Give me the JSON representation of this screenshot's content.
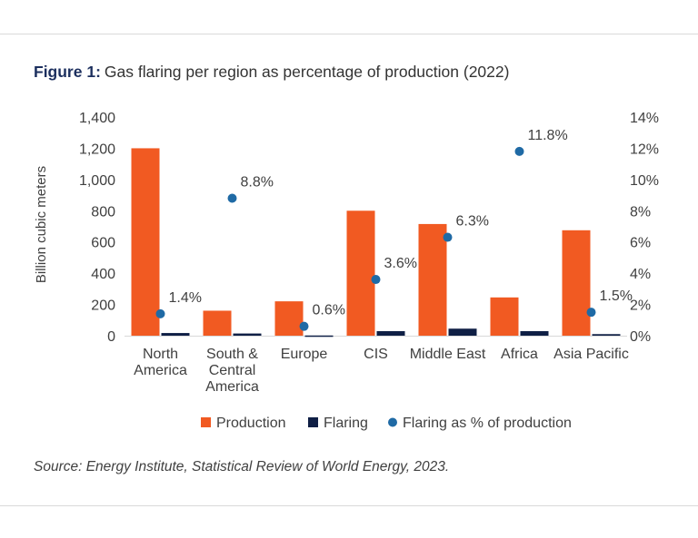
{
  "figure": {
    "label": "Figure 1:",
    "title": "Gas flaring per region as percentage of production (2022)",
    "source": "Source: Energy Institute, Statistical Review of World Energy, 2023."
  },
  "chart_data": {
    "type": "bar",
    "title": "Gas flaring per region as percentage of production (2022)",
    "ylabel": "Billion cubic meters",
    "y2label": "",
    "xlabel": "",
    "categories": [
      [
        "North",
        "America"
      ],
      [
        "South &",
        "Central",
        "America"
      ],
      [
        "Europe"
      ],
      [
        "CIS"
      ],
      [
        "Middle East"
      ],
      [
        "Africa"
      ],
      [
        "Asia Pacific"
      ]
    ],
    "ylim": [
      0,
      1400
    ],
    "yticks": [
      0,
      200,
      400,
      600,
      800,
      1000,
      1200,
      1400
    ],
    "ytick_labels": [
      "0",
      "200",
      "400",
      "600",
      "800",
      "1,000",
      "1,200",
      "1,400"
    ],
    "y2lim": [
      0,
      14
    ],
    "y2ticks": [
      0,
      2,
      4,
      6,
      8,
      10,
      12,
      14
    ],
    "y2tick_labels": [
      "0%",
      "2%",
      "4%",
      "6%",
      "8%",
      "10%",
      "12%",
      "14%"
    ],
    "series": [
      {
        "name": "Production",
        "type": "bar",
        "axis": "left",
        "color": "#f15a22",
        "values": [
          1200,
          160,
          220,
          800,
          715,
          245,
          675
        ]
      },
      {
        "name": "Flaring",
        "type": "bar",
        "axis": "left",
        "color": "#0f1f45",
        "values": [
          17,
          14,
          1.3,
          29,
          45,
          29,
          10
        ]
      },
      {
        "name": "Flaring as % of production",
        "type": "scatter",
        "axis": "right",
        "color": "#1f6aa5",
        "values": [
          1.4,
          8.8,
          0.6,
          3.6,
          6.3,
          11.8,
          1.5
        ],
        "labels": [
          "1.4%",
          "8.8%",
          "0.6%",
          "3.6%",
          "6.3%",
          "11.8%",
          "1.5%"
        ]
      }
    ],
    "grid": false,
    "legend": "bottom-center"
  }
}
